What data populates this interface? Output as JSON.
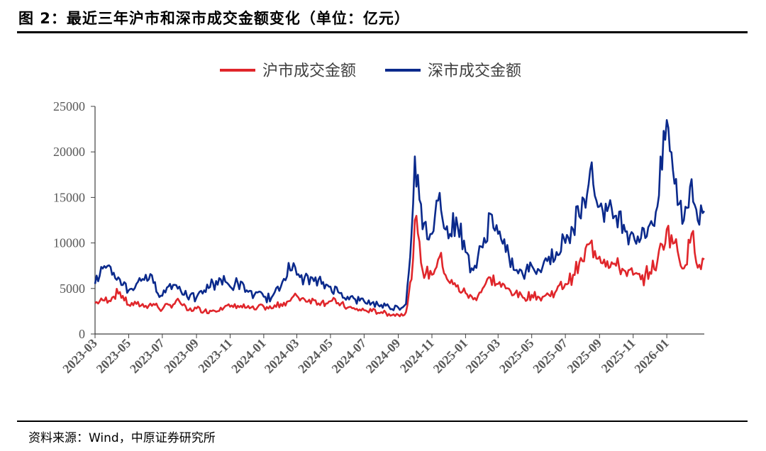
{
  "header": {
    "title": "图 2：最近三年沪市和深市成交金额变化（单位：亿元）"
  },
  "footer": {
    "source": "资料来源：Wind，中原证券研究所"
  },
  "colors": {
    "sh": "#e0262b",
    "sz": "#0b2a8c",
    "axis": "#404040"
  },
  "chart_data": {
    "type": "line",
    "title": "最近三年沪市和深市成交金额变化",
    "ylabel": "亿元",
    "ylim": [
      0,
      25000
    ],
    "yticks": [
      0,
      5000,
      10000,
      15000,
      20000,
      25000
    ],
    "x_range": [
      "2023-03",
      "2026-03"
    ],
    "xticks": [
      "2023-03",
      "2023-05",
      "2023-07",
      "2023-09",
      "2023-11",
      "2024-01",
      "2024-03",
      "2024-05",
      "2024-07",
      "2024-09",
      "2024-11",
      "2025-01",
      "2025-03",
      "2025-05",
      "2025-07",
      "2025-09",
      "2025-11",
      "2026-01"
    ],
    "legend": [
      "沪市成交金额",
      "深市成交金额"
    ],
    "series": [
      {
        "name": "沪市成交金额",
        "points": [
          [
            "2023-03-01",
            3400
          ],
          [
            "2023-03-15",
            3700
          ],
          [
            "2023-04-01",
            4000
          ],
          [
            "2023-04-15",
            4600
          ],
          [
            "2023-05-01",
            3200
          ],
          [
            "2023-05-15",
            3300
          ],
          [
            "2023-06-01",
            3100
          ],
          [
            "2023-06-15",
            3300
          ],
          [
            "2023-07-01",
            2700
          ],
          [
            "2023-07-15",
            3200
          ],
          [
            "2023-08-01",
            3600
          ],
          [
            "2023-08-15",
            2600
          ],
          [
            "2023-09-01",
            2800
          ],
          [
            "2023-09-15",
            2500
          ],
          [
            "2023-10-01",
            2600
          ],
          [
            "2023-10-15",
            2900
          ],
          [
            "2023-11-01",
            3000
          ],
          [
            "2023-11-15",
            3100
          ],
          [
            "2023-12-01",
            2900
          ],
          [
            "2023-12-15",
            2700
          ],
          [
            "2024-01-01",
            3000
          ],
          [
            "2024-01-15",
            2800
          ],
          [
            "2024-02-01",
            3300
          ],
          [
            "2024-02-15",
            3600
          ],
          [
            "2024-03-01",
            4200
          ],
          [
            "2024-03-15",
            3800
          ],
          [
            "2024-04-01",
            3700
          ],
          [
            "2024-04-15",
            3500
          ],
          [
            "2024-05-01",
            3600
          ],
          [
            "2024-05-15",
            3400
          ],
          [
            "2024-06-01",
            2900
          ],
          [
            "2024-06-15",
            2700
          ],
          [
            "2024-07-01",
            2600
          ],
          [
            "2024-07-15",
            2500
          ],
          [
            "2024-08-01",
            2400
          ],
          [
            "2024-08-15",
            2200
          ],
          [
            "2024-09-01",
            2100
          ],
          [
            "2024-09-15",
            2400
          ],
          [
            "2024-09-25",
            6000
          ],
          [
            "2024-10-01",
            12500
          ],
          [
            "2024-10-15",
            7000
          ],
          [
            "2024-11-01",
            6500
          ],
          [
            "2024-11-15",
            8500
          ],
          [
            "2024-12-01",
            5800
          ],
          [
            "2024-12-15",
            5200
          ],
          [
            "2025-01-01",
            4500
          ],
          [
            "2025-01-15",
            3800
          ],
          [
            "2025-02-01",
            5000
          ],
          [
            "2025-02-15",
            6200
          ],
          [
            "2025-03-01",
            5500
          ],
          [
            "2025-03-15",
            5000
          ],
          [
            "2025-04-01",
            4500
          ],
          [
            "2025-04-15",
            4000
          ],
          [
            "2025-05-01",
            4300
          ],
          [
            "2025-05-15",
            4000
          ],
          [
            "2025-06-01",
            4300
          ],
          [
            "2025-06-15",
            4800
          ],
          [
            "2025-07-01",
            5500
          ],
          [
            "2025-07-15",
            6500
          ],
          [
            "2025-08-01",
            8000
          ],
          [
            "2025-08-15",
            10000
          ],
          [
            "2025-09-01",
            8500
          ],
          [
            "2025-09-15",
            8000
          ],
          [
            "2025-10-01",
            7500
          ],
          [
            "2025-10-15",
            7000
          ],
          [
            "2025-11-01",
            6500
          ],
          [
            "2025-11-15",
            6000
          ],
          [
            "2025-12-01",
            6800
          ],
          [
            "2025-12-15",
            8000
          ],
          [
            "2026-01-01",
            11500
          ],
          [
            "2026-01-15",
            10000
          ],
          [
            "2026-02-01",
            7200
          ],
          [
            "2026-02-15",
            11000
          ],
          [
            "2026-03-01",
            7600
          ],
          [
            "2026-03-10",
            8200
          ]
        ]
      },
      {
        "name": "深市成交金额",
        "points": [
          [
            "2023-03-01",
            5500
          ],
          [
            "2023-03-15",
            7200
          ],
          [
            "2023-04-01",
            6500
          ],
          [
            "2023-04-15",
            6000
          ],
          [
            "2023-05-01",
            4800
          ],
          [
            "2023-05-15",
            5500
          ],
          [
            "2023-06-01",
            6500
          ],
          [
            "2023-06-15",
            5600
          ],
          [
            "2023-07-01",
            4200
          ],
          [
            "2023-07-15",
            5500
          ],
          [
            "2023-08-01",
            5200
          ],
          [
            "2023-08-15",
            4100
          ],
          [
            "2023-09-01",
            4000
          ],
          [
            "2023-09-15",
            4800
          ],
          [
            "2023-10-01",
            5600
          ],
          [
            "2023-10-15",
            6000
          ],
          [
            "2023-11-01",
            5200
          ],
          [
            "2023-11-15",
            5600
          ],
          [
            "2023-12-01",
            4800
          ],
          [
            "2023-12-15",
            4300
          ],
          [
            "2024-01-01",
            4100
          ],
          [
            "2024-01-15",
            4000
          ],
          [
            "2024-02-01",
            5200
          ],
          [
            "2024-02-15",
            7800
          ],
          [
            "2024-03-01",
            6500
          ],
          [
            "2024-03-15",
            6200
          ],
          [
            "2024-04-01",
            5800
          ],
          [
            "2024-04-15",
            5500
          ],
          [
            "2024-05-01",
            5200
          ],
          [
            "2024-05-15",
            4600
          ],
          [
            "2024-06-01",
            4100
          ],
          [
            "2024-06-15",
            3800
          ],
          [
            "2024-07-01",
            3600
          ],
          [
            "2024-07-15",
            3400
          ],
          [
            "2024-08-01",
            3200
          ],
          [
            "2024-08-15",
            3000
          ],
          [
            "2024-09-01",
            2900
          ],
          [
            "2024-09-15",
            3300
          ],
          [
            "2024-09-25",
            11000
          ],
          [
            "2024-10-01",
            19500
          ],
          [
            "2024-10-15",
            11500
          ],
          [
            "2024-11-01",
            11000
          ],
          [
            "2024-11-15",
            15500
          ],
          [
            "2024-12-01",
            10500
          ],
          [
            "2024-12-15",
            12800
          ],
          [
            "2025-01-01",
            9000
          ],
          [
            "2025-01-15",
            7000
          ],
          [
            "2025-02-01",
            9500
          ],
          [
            "2025-02-15",
            13200
          ],
          [
            "2025-03-01",
            11000
          ],
          [
            "2025-03-15",
            9000
          ],
          [
            "2025-04-01",
            7000
          ],
          [
            "2025-04-15",
            6500
          ],
          [
            "2025-05-01",
            7500
          ],
          [
            "2025-05-15",
            7000
          ],
          [
            "2025-06-01",
            8500
          ],
          [
            "2025-06-15",
            9000
          ],
          [
            "2025-07-01",
            10000
          ],
          [
            "2025-07-15",
            11500
          ],
          [
            "2025-08-01",
            15000
          ],
          [
            "2025-08-15",
            18000
          ],
          [
            "2025-09-01",
            14000
          ],
          [
            "2025-09-15",
            13500
          ],
          [
            "2025-10-01",
            13000
          ],
          [
            "2025-10-15",
            12000
          ],
          [
            "2025-11-01",
            11000
          ],
          [
            "2025-11-15",
            10500
          ],
          [
            "2025-12-01",
            12000
          ],
          [
            "2025-12-15",
            14000
          ],
          [
            "2026-01-01",
            23500
          ],
          [
            "2026-01-15",
            16500
          ],
          [
            "2026-02-01",
            12500
          ],
          [
            "2026-02-15",
            17000
          ],
          [
            "2026-03-01",
            12000
          ],
          [
            "2026-03-10",
            13500
          ]
        ]
      }
    ]
  }
}
